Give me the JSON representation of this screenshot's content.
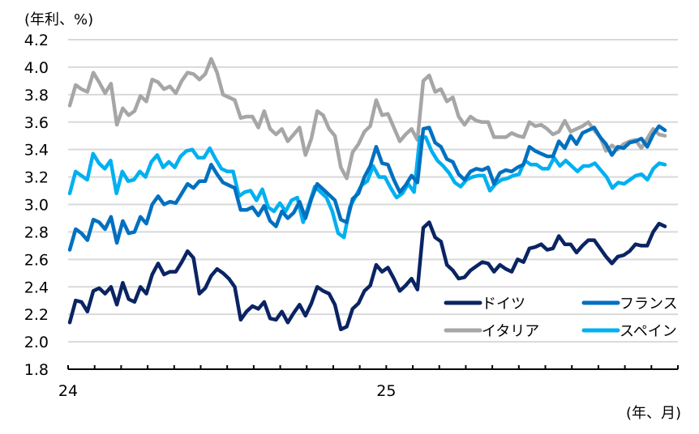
{
  "chart_data": {
    "type": "line",
    "title": "",
    "ylabel": "(年利、%)",
    "xlabel": "(年、月)",
    "ylim": [
      1.8,
      4.2
    ],
    "yticks": [
      "1.8",
      "2.0",
      "2.2",
      "2.4",
      "2.6",
      "2.8",
      "3.0",
      "3.2",
      "3.4",
      "3.6",
      "3.8",
      "4.0",
      "4.2"
    ],
    "xtick_labels": [
      {
        "label": "24",
        "month_index": 0
      },
      {
        "label": "25",
        "month_index": 12
      }
    ],
    "x_months": 23,
    "grid": true,
    "legend_position": "bottom-right",
    "series": [
      {
        "name": "ドイツ",
        "color": "#0a2463",
        "values": [
          2.14,
          2.3,
          2.29,
          2.22,
          2.37,
          2.39,
          2.35,
          2.4,
          2.27,
          2.43,
          2.31,
          2.29,
          2.4,
          2.35,
          2.49,
          2.57,
          2.49,
          2.51,
          2.51,
          2.58,
          2.66,
          2.61,
          2.35,
          2.39,
          2.48,
          2.53,
          2.5,
          2.46,
          2.4,
          2.16,
          2.22,
          2.26,
          2.24,
          2.29,
          2.17,
          2.16,
          2.22,
          2.14,
          2.21,
          2.27,
          2.19,
          2.28,
          2.4,
          2.37,
          2.35,
          2.27,
          2.09,
          2.11,
          2.24,
          2.28,
          2.37,
          2.41,
          2.56,
          2.51,
          2.54,
          2.46,
          2.37,
          2.41,
          2.46,
          2.38,
          2.83,
          2.87,
          2.76,
          2.73,
          2.56,
          2.52,
          2.46,
          2.47,
          2.52,
          2.55,
          2.58,
          2.57,
          2.51,
          2.56,
          2.53,
          2.51,
          2.6,
          2.58,
          2.68,
          2.69,
          2.71,
          2.67,
          2.68,
          2.77,
          2.71,
          2.71,
          2.65,
          2.7,
          2.74,
          2.74,
          2.68,
          2.62,
          2.57,
          2.62,
          2.63,
          2.66,
          2.71,
          2.7,
          2.7,
          2.8,
          2.86,
          2.84
        ]
      },
      {
        "name": "フランス",
        "color": "#0070c0",
        "values": [
          2.67,
          2.82,
          2.79,
          2.74,
          2.89,
          2.87,
          2.82,
          2.91,
          2.72,
          2.88,
          2.79,
          2.8,
          2.91,
          2.86,
          3.0,
          3.06,
          3.0,
          3.02,
          3.01,
          3.08,
          3.15,
          3.12,
          3.17,
          3.17,
          3.29,
          3.22,
          3.16,
          3.14,
          3.12,
          2.96,
          2.96,
          2.98,
          2.92,
          2.99,
          2.88,
          2.84,
          2.95,
          2.9,
          2.94,
          3.02,
          2.9,
          3.04,
          3.15,
          3.11,
          3.07,
          3.03,
          2.89,
          2.87,
          3.04,
          3.08,
          3.2,
          3.28,
          3.42,
          3.3,
          3.29,
          3.18,
          3.09,
          3.14,
          3.21,
          3.16,
          3.55,
          3.56,
          3.45,
          3.42,
          3.33,
          3.31,
          3.22,
          3.18,
          3.24,
          3.26,
          3.25,
          3.27,
          3.15,
          3.23,
          3.25,
          3.24,
          3.27,
          3.29,
          3.42,
          3.39,
          3.37,
          3.35,
          3.35,
          3.46,
          3.41,
          3.5,
          3.44,
          3.52,
          3.54,
          3.56,
          3.49,
          3.44,
          3.36,
          3.42,
          3.41,
          3.45,
          3.46,
          3.48,
          3.42,
          3.51,
          3.57,
          3.54
        ]
      },
      {
        "name": "イタリア",
        "color": "#a6a6a6",
        "values": [
          3.72,
          3.87,
          3.84,
          3.82,
          3.96,
          3.89,
          3.81,
          3.88,
          3.58,
          3.7,
          3.65,
          3.68,
          3.79,
          3.75,
          3.91,
          3.89,
          3.84,
          3.86,
          3.81,
          3.9,
          3.96,
          3.95,
          3.91,
          3.95,
          4.06,
          3.96,
          3.8,
          3.78,
          3.76,
          3.63,
          3.64,
          3.64,
          3.56,
          3.68,
          3.55,
          3.51,
          3.55,
          3.46,
          3.51,
          3.56,
          3.36,
          3.48,
          3.68,
          3.65,
          3.55,
          3.5,
          3.27,
          3.19,
          3.38,
          3.44,
          3.53,
          3.57,
          3.76,
          3.65,
          3.66,
          3.56,
          3.46,
          3.51,
          3.55,
          3.47,
          3.9,
          3.94,
          3.82,
          3.84,
          3.75,
          3.78,
          3.64,
          3.58,
          3.64,
          3.61,
          3.6,
          3.6,
          3.49,
          3.49,
          3.49,
          3.52,
          3.5,
          3.49,
          3.6,
          3.57,
          3.58,
          3.55,
          3.51,
          3.53,
          3.61,
          3.53,
          3.55,
          3.57,
          3.6,
          3.54,
          3.49,
          3.39,
          3.43,
          3.4,
          3.44,
          3.46,
          3.47,
          3.41,
          3.48,
          3.55,
          3.51,
          3.5
        ]
      },
      {
        "name": "スペイン",
        "color": "#00b0f0",
        "values": [
          3.08,
          3.24,
          3.21,
          3.18,
          3.37,
          3.3,
          3.26,
          3.32,
          3.08,
          3.24,
          3.17,
          3.18,
          3.24,
          3.2,
          3.31,
          3.36,
          3.27,
          3.31,
          3.27,
          3.35,
          3.39,
          3.4,
          3.34,
          3.34,
          3.41,
          3.33,
          3.26,
          3.24,
          3.24,
          3.06,
          3.09,
          3.1,
          3.03,
          3.11,
          2.98,
          2.95,
          3.01,
          2.95,
          3.03,
          3.05,
          2.87,
          3.0,
          3.13,
          3.09,
          3.05,
          2.95,
          2.79,
          2.76,
          2.98,
          3.06,
          3.14,
          3.17,
          3.28,
          3.2,
          3.2,
          3.12,
          3.05,
          3.08,
          3.15,
          3.09,
          3.49,
          3.49,
          3.39,
          3.32,
          3.28,
          3.23,
          3.16,
          3.13,
          3.18,
          3.2,
          3.21,
          3.21,
          3.1,
          3.15,
          3.18,
          3.19,
          3.21,
          3.22,
          3.32,
          3.29,
          3.29,
          3.26,
          3.26,
          3.34,
          3.28,
          3.32,
          3.28,
          3.24,
          3.28,
          3.28,
          3.3,
          3.25,
          3.2,
          3.12,
          3.16,
          3.15,
          3.18,
          3.21,
          3.22,
          3.18,
          3.26,
          3.3,
          3.29
        ]
      }
    ]
  }
}
